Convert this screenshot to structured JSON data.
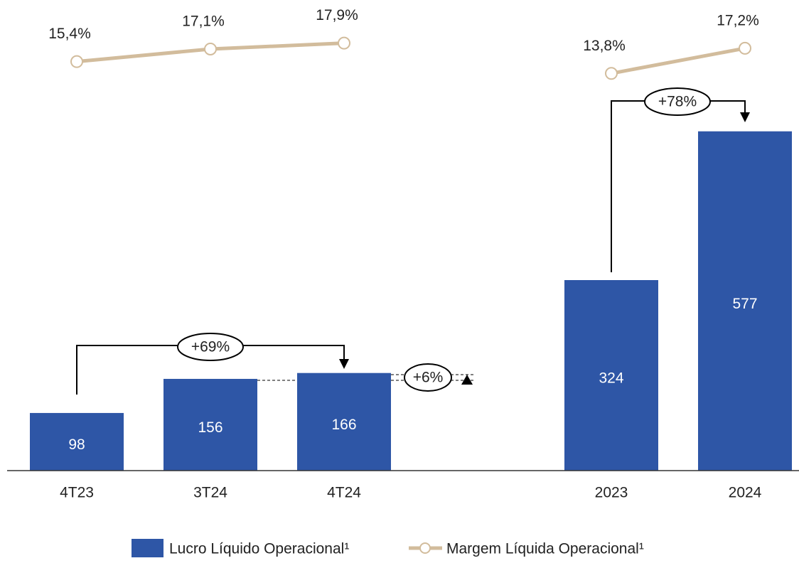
{
  "chart_data": {
    "type": "bar",
    "categories": [
      "4T23",
      "3T24",
      "4T24",
      null,
      "2023",
      "2024"
    ],
    "series": [
      {
        "name": "Lucro Líquido Operacional¹",
        "type": "bar",
        "color": "#2e56a6",
        "values": [
          98,
          156,
          166,
          null,
          324,
          577
        ]
      },
      {
        "name": "Margem Líquida Operacional¹",
        "type": "line",
        "axis": "y2",
        "color": "#d2bc9c",
        "values": [
          15.4,
          17.1,
          17.9,
          null,
          13.8,
          17.2
        ],
        "value_labels": [
          "15,4%",
          "17,1%",
          "17,9%",
          null,
          "13,8%",
          "17,2%"
        ]
      }
    ],
    "ylim": [
      0,
      700
    ],
    "y2lim": [
      12,
      22
    ],
    "annotations": [
      "+69%",
      "+6%",
      "+78%"
    ],
    "legend": "bottom"
  }
}
